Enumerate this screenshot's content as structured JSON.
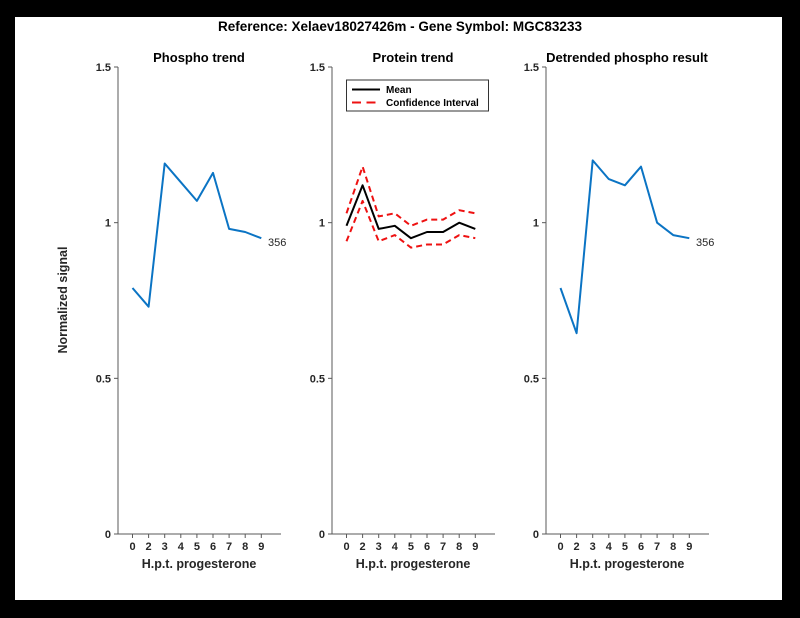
{
  "figure_title": "Reference:  Xelaev18027426m - Gene Symbol:  MGC83233",
  "colors": {
    "phospho_line": "#0B74C4",
    "mean_line": "#000000",
    "confidence_line": "#EE1111",
    "axis": "#595959",
    "text": "#262626"
  },
  "chart_data": [
    {
      "type": "line",
      "title": "Phospho trend",
      "xlabel": "H.p.t. progesterone",
      "ylabel": "Normalized signal",
      "end_label": "356",
      "x_tick_labels": [
        "0",
        "2",
        "3",
        "4",
        "5",
        "6",
        "7",
        "8",
        "9"
      ],
      "y_tick_labels": [
        "0",
        "0.5",
        "1",
        "1.5"
      ],
      "y_tick_values": [
        0,
        0.5,
        1,
        1.5
      ],
      "ylim": [
        0,
        1.5
      ],
      "series": [
        {
          "name": "phospho",
          "color": "#0B74C4",
          "style": "solid",
          "values": [
            0.79,
            0.73,
            1.19,
            1.13,
            1.07,
            1.16,
            0.98,
            0.97,
            0.95
          ]
        }
      ]
    },
    {
      "type": "line",
      "title": "Protein trend",
      "xlabel": "H.p.t. progesterone",
      "ylabel": "",
      "end_label": "",
      "x_tick_labels": [
        "0",
        "2",
        "3",
        "4",
        "5",
        "6",
        "7",
        "8",
        "9"
      ],
      "y_tick_labels": [
        "0",
        "0.5",
        "1",
        "1.5"
      ],
      "y_tick_values": [
        0,
        0.5,
        1,
        1.5
      ],
      "ylim": [
        0,
        1.5
      ],
      "legend": {
        "items": [
          {
            "label": "Mean"
          },
          {
            "label": "Confidence Interval"
          }
        ]
      },
      "series": [
        {
          "name": "mean",
          "color": "#000000",
          "style": "solid",
          "values": [
            0.99,
            1.12,
            0.98,
            0.99,
            0.95,
            0.97,
            0.97,
            1.0,
            0.98
          ]
        },
        {
          "name": "ci-upper",
          "color": "#EE1111",
          "style": "dashed",
          "values": [
            1.03,
            1.18,
            1.02,
            1.03,
            0.99,
            1.01,
            1.01,
            1.04,
            1.03
          ]
        },
        {
          "name": "ci-lower",
          "color": "#EE1111",
          "style": "dashed",
          "values": [
            0.94,
            1.07,
            0.94,
            0.96,
            0.92,
            0.93,
            0.93,
            0.96,
            0.95
          ]
        }
      ]
    },
    {
      "type": "line",
      "title": "Detrended phospho result",
      "xlabel": "H.p.t. progesterone",
      "ylabel": "",
      "end_label": "356",
      "x_tick_labels": [
        "0",
        "2",
        "3",
        "4",
        "5",
        "6",
        "7",
        "8",
        "9"
      ],
      "y_tick_labels": [
        "0",
        "0.5",
        "1",
        "1.5"
      ],
      "y_tick_values": [
        0,
        0.5,
        1,
        1.5
      ],
      "ylim": [
        0,
        1.5
      ],
      "series": [
        {
          "name": "detrended",
          "color": "#0B74C4",
          "style": "solid",
          "values": [
            0.79,
            0.645,
            1.2,
            1.14,
            1.12,
            1.18,
            1.0,
            0.96,
            0.95
          ]
        }
      ]
    }
  ]
}
